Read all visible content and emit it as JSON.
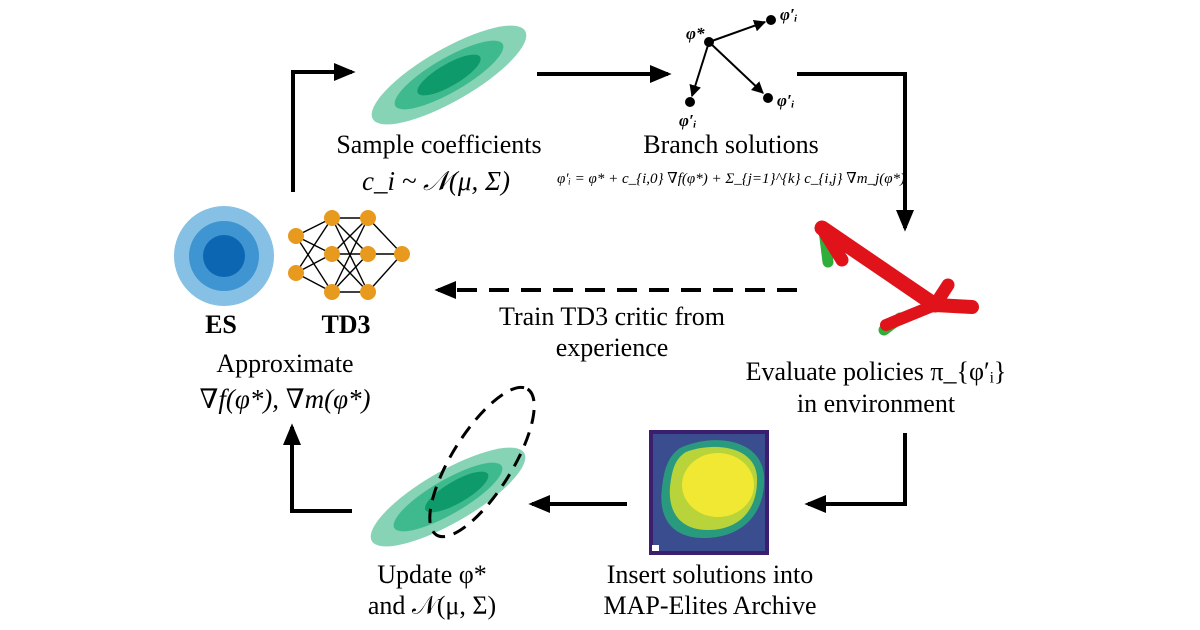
{
  "colors": {
    "teal_light": "#86d3b6",
    "teal_mid": "#3fb98e",
    "teal_dark": "#0e9a6a",
    "es_light": "#86c0e4",
    "es_mid": "#3f95d1",
    "es_dark": "#0c66b2",
    "node_orange": "#e89a1e",
    "robot_red": "#e0121a",
    "robot_green": "#2fae39",
    "arrow": "#000000"
  },
  "labels": {
    "sample": {
      "line1": "Sample coefficients",
      "line2": "c_i ~ 𝒩(μ, Σ)"
    },
    "branch": {
      "line1": "Branch solutions",
      "formula": "φ′ᵢ = φ* + c_{i,0} ∇f(φ*) + Σ_{j=1}^{k} c_{i,j} ∇m_j(φ*)"
    },
    "evaluate": {
      "line1": "Evaluate policies π_{φ′ᵢ}",
      "line2": "in environment"
    },
    "insert": {
      "line1": "Insert solutions into",
      "line2": "MAP-Elites Archive"
    },
    "update": {
      "line1": "Update φ*",
      "line2": "and 𝒩(μ, Σ)"
    },
    "approx": {
      "line1": "Approximate",
      "line2": "∇f(φ*), ∇m(φ*)"
    },
    "train": {
      "line1": "Train TD3 critic from",
      "line2": "experience"
    },
    "es": "ES",
    "td3": "TD3",
    "phi_star": "φ*",
    "phi_prime": "φ′ᵢ"
  }
}
